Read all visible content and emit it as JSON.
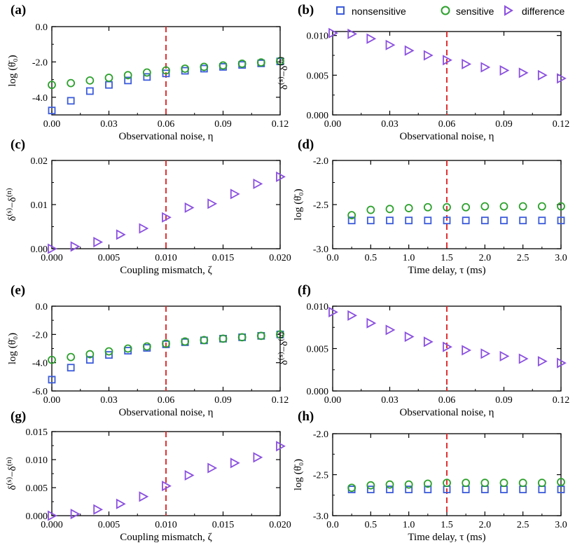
{
  "legend": {
    "nonsensitive": "nonsensitive",
    "sensitive": "sensitive",
    "difference": "difference"
  },
  "colors": {
    "nonsensitive": "#3b5bdb",
    "sensitive": "#2ca02c",
    "difference": "#8a4fe0",
    "threshold": "#e03131"
  },
  "chart_data": [
    {
      "id": "a",
      "label": "(a)",
      "type": "scatter",
      "xlabel": "Observational noise, η",
      "ylabel": "log (θ̄₀)",
      "xlim": [
        0,
        0.12
      ],
      "ylim": [
        -5,
        0
      ],
      "xticks": [
        0,
        0.03,
        0.06,
        0.09,
        0.12
      ],
      "xtick_labels": [
        "0.00",
        "0.03",
        "0.06",
        "0.09",
        "0.12"
      ],
      "yticks": [
        -4,
        -2,
        0
      ],
      "ytick_labels": [
        "-4.0",
        "-2.0",
        "0.0"
      ],
      "vline": 0.06,
      "x": [
        0,
        0.01,
        0.02,
        0.03,
        0.04,
        0.05,
        0.06,
        0.07,
        0.08,
        0.09,
        0.1,
        0.11,
        0.12
      ],
      "series": [
        {
          "name": "nonsensitive",
          "marker": "square",
          "values": [
            -4.75,
            -4.2,
            -3.65,
            -3.3,
            -3.05,
            -2.85,
            -2.65,
            -2.5,
            -2.38,
            -2.28,
            -2.17,
            -2.08,
            -1.97
          ]
        },
        {
          "name": "sensitive",
          "marker": "circle",
          "values": [
            -3.3,
            -3.2,
            -3.05,
            -2.9,
            -2.75,
            -2.6,
            -2.48,
            -2.38,
            -2.28,
            -2.2,
            -2.1,
            -2.03,
            -1.95
          ]
        }
      ]
    },
    {
      "id": "b",
      "label": "(b)",
      "type": "scatter",
      "xlabel": "Observational noise, η",
      "ylabel": "δ(s)−δ(n)",
      "xlim": [
        0,
        0.12
      ],
      "ylim": [
        0,
        0.0105
      ],
      "xticks": [
        0,
        0.03,
        0.06,
        0.09,
        0.12
      ],
      "xtick_labels": [
        "0.00",
        "0.03",
        "0.06",
        "0.09",
        "0.12"
      ],
      "yticks": [
        0,
        0.005,
        0.01
      ],
      "ytick_labels": [
        "0.000",
        "0.005",
        "0.010"
      ],
      "vline": 0.06,
      "x": [
        0,
        0.01,
        0.02,
        0.03,
        0.04,
        0.05,
        0.06,
        0.07,
        0.08,
        0.09,
        0.1,
        0.11,
        0.12
      ],
      "series": [
        {
          "name": "difference",
          "marker": "triangle",
          "values": [
            0.0103,
            0.0102,
            0.0096,
            0.0088,
            0.0081,
            0.0075,
            0.0069,
            0.0064,
            0.006,
            0.0056,
            0.0053,
            0.005,
            0.0046
          ]
        }
      ]
    },
    {
      "id": "c",
      "label": "(c)",
      "type": "scatter",
      "xlabel": "Coupling mismatch, ζ",
      "ylabel": "δ(s)−δ(n)",
      "xlim": [
        0,
        0.02
      ],
      "ylim": [
        0,
        0.02
      ],
      "xticks": [
        0,
        0.005,
        0.01,
        0.015,
        0.02
      ],
      "xtick_labels": [
        "0.000",
        "0.005",
        "0.010",
        "0.015",
        "0.020"
      ],
      "yticks": [
        0,
        0.01,
        0.02
      ],
      "ytick_labels": [
        "0.00",
        "0.01",
        "0.02"
      ],
      "vline": 0.01,
      "x": [
        0,
        0.002,
        0.004,
        0.006,
        0.008,
        0.01,
        0.012,
        0.014,
        0.016,
        0.018,
        0.02
      ],
      "series": [
        {
          "name": "difference",
          "marker": "triangle",
          "values": [
            0.0,
            0.0005,
            0.0015,
            0.0032,
            0.0046,
            0.0071,
            0.0093,
            0.0102,
            0.0124,
            0.0147,
            0.0163
          ]
        }
      ]
    },
    {
      "id": "d",
      "label": "(d)",
      "type": "scatter",
      "xlabel": "Time delay, τ (ms)",
      "ylabel": "log (θ̄₀)",
      "xlim": [
        0,
        3.0
      ],
      "ylim": [
        -3,
        -2
      ],
      "xticks": [
        0,
        0.5,
        1,
        1.5,
        2,
        2.5,
        3
      ],
      "xtick_labels": [
        "0.0",
        "0.5",
        "1.0",
        "1.5",
        "2.0",
        "2.5",
        "3.0"
      ],
      "yticks": [
        -3,
        -2.5,
        -2
      ],
      "ytick_labels": [
        "-3.0",
        "-2.5",
        "-2.0"
      ],
      "vline": 1.5,
      "x": [
        0.25,
        0.5,
        0.75,
        1.0,
        1.25,
        1.5,
        1.75,
        2.0,
        2.25,
        2.5,
        2.75,
        3.0
      ],
      "series": [
        {
          "name": "nonsensitive",
          "marker": "square",
          "values": [
            -2.68,
            -2.68,
            -2.68,
            -2.68,
            -2.68,
            -2.68,
            -2.68,
            -2.68,
            -2.68,
            -2.68,
            -2.68,
            -2.68
          ]
        },
        {
          "name": "sensitive",
          "marker": "circle",
          "values": [
            -2.62,
            -2.56,
            -2.55,
            -2.54,
            -2.53,
            -2.53,
            -2.53,
            -2.52,
            -2.52,
            -2.52,
            -2.52,
            -2.52
          ]
        }
      ]
    },
    {
      "id": "e",
      "label": "(e)",
      "type": "scatter",
      "xlabel": "Observational noise, η",
      "ylabel": "log (θ̄₀)",
      "xlim": [
        0,
        0.12
      ],
      "ylim": [
        -6,
        0
      ],
      "xticks": [
        0,
        0.03,
        0.06,
        0.09,
        0.12
      ],
      "xtick_labels": [
        "0.00",
        "0.03",
        "0.06",
        "0.09",
        "0.12"
      ],
      "yticks": [
        -6,
        -4,
        -2,
        0
      ],
      "ytick_labels": [
        "-6.0",
        "-4.0",
        "-2.0",
        "0.0"
      ],
      "vline": 0.06,
      "x": [
        0,
        0.01,
        0.02,
        0.03,
        0.04,
        0.05,
        0.06,
        0.07,
        0.08,
        0.09,
        0.1,
        0.11,
        0.12
      ],
      "series": [
        {
          "name": "nonsensitive",
          "marker": "square",
          "values": [
            -5.2,
            -4.35,
            -3.8,
            -3.45,
            -3.15,
            -2.95,
            -2.7,
            -2.55,
            -2.42,
            -2.3,
            -2.2,
            -2.1,
            -2.0
          ]
        },
        {
          "name": "sensitive",
          "marker": "circle",
          "values": [
            -3.8,
            -3.6,
            -3.4,
            -3.2,
            -3.0,
            -2.85,
            -2.65,
            -2.5,
            -2.4,
            -2.3,
            -2.2,
            -2.1,
            -2.0
          ]
        }
      ]
    },
    {
      "id": "f",
      "label": "(f)",
      "type": "scatter",
      "xlabel": "Observational noise, η",
      "ylabel": "δ(s)−δ(n)",
      "xlim": [
        0,
        0.12
      ],
      "ylim": [
        0,
        0.01
      ],
      "xticks": [
        0,
        0.03,
        0.06,
        0.09,
        0.12
      ],
      "xtick_labels": [
        "0.00",
        "0.03",
        "0.06",
        "0.09",
        "0.12"
      ],
      "yticks": [
        0,
        0.005,
        0.01
      ],
      "ytick_labels": [
        "0.000",
        "0.005",
        "0.010"
      ],
      "vline": 0.06,
      "x": [
        0,
        0.01,
        0.02,
        0.03,
        0.04,
        0.05,
        0.06,
        0.07,
        0.08,
        0.09,
        0.1,
        0.11,
        0.12
      ],
      "series": [
        {
          "name": "difference",
          "marker": "triangle",
          "values": [
            0.0093,
            0.0089,
            0.008,
            0.0072,
            0.0064,
            0.0058,
            0.0052,
            0.0048,
            0.0044,
            0.0041,
            0.0038,
            0.0035,
            0.0033
          ]
        }
      ]
    },
    {
      "id": "g",
      "label": "(g)",
      "type": "scatter",
      "xlabel": "Coupling mismatch, ζ",
      "ylabel": "δ(s)−δ(n)",
      "xlim": [
        0,
        0.02
      ],
      "ylim": [
        0,
        0.015
      ],
      "xticks": [
        0,
        0.005,
        0.01,
        0.015,
        0.02
      ],
      "xtick_labels": [
        "0.000",
        "0.005",
        "0.010",
        "0.015",
        "0.020"
      ],
      "yticks": [
        0,
        0.005,
        0.01,
        0.015
      ],
      "ytick_labels": [
        "0.000",
        "0.005",
        "0.010",
        "0.015"
      ],
      "vline": 0.01,
      "x": [
        0,
        0.002,
        0.004,
        0.006,
        0.008,
        0.01,
        0.012,
        0.014,
        0.016,
        0.018,
        0.02
      ],
      "series": [
        {
          "name": "difference",
          "marker": "triangle",
          "values": [
            0.0,
            0.0003,
            0.0011,
            0.0021,
            0.0034,
            0.0053,
            0.0072,
            0.0085,
            0.0094,
            0.0104,
            0.0124
          ]
        }
      ]
    },
    {
      "id": "h",
      "label": "(h)",
      "type": "scatter",
      "xlabel": "Time delay, τ (ms)",
      "ylabel": "log (θ̄₀)",
      "xlim": [
        0,
        3.0
      ],
      "ylim": [
        -3,
        -2
      ],
      "xticks": [
        0,
        0.5,
        1,
        1.5,
        2,
        2.5,
        3
      ],
      "xtick_labels": [
        "0.0",
        "0.5",
        "1.0",
        "1.5",
        "2.0",
        "2.5",
        "3.0"
      ],
      "yticks": [
        -3,
        -2.5,
        -2
      ],
      "ytick_labels": [
        "-3.0",
        "-2.5",
        "-2.0"
      ],
      "vline": 1.5,
      "x": [
        0.25,
        0.5,
        0.75,
        1.0,
        1.25,
        1.5,
        1.75,
        2.0,
        2.25,
        2.5,
        2.75,
        3.0
      ],
      "series": [
        {
          "name": "nonsensitive",
          "marker": "square",
          "values": [
            -2.68,
            -2.68,
            -2.68,
            -2.68,
            -2.68,
            -2.68,
            -2.68,
            -2.68,
            -2.68,
            -2.68,
            -2.68,
            -2.68
          ]
        },
        {
          "name": "sensitive",
          "marker": "circle",
          "values": [
            -2.66,
            -2.63,
            -2.62,
            -2.62,
            -2.61,
            -2.6,
            -2.6,
            -2.6,
            -2.6,
            -2.6,
            -2.6,
            -2.59
          ]
        }
      ]
    }
  ]
}
